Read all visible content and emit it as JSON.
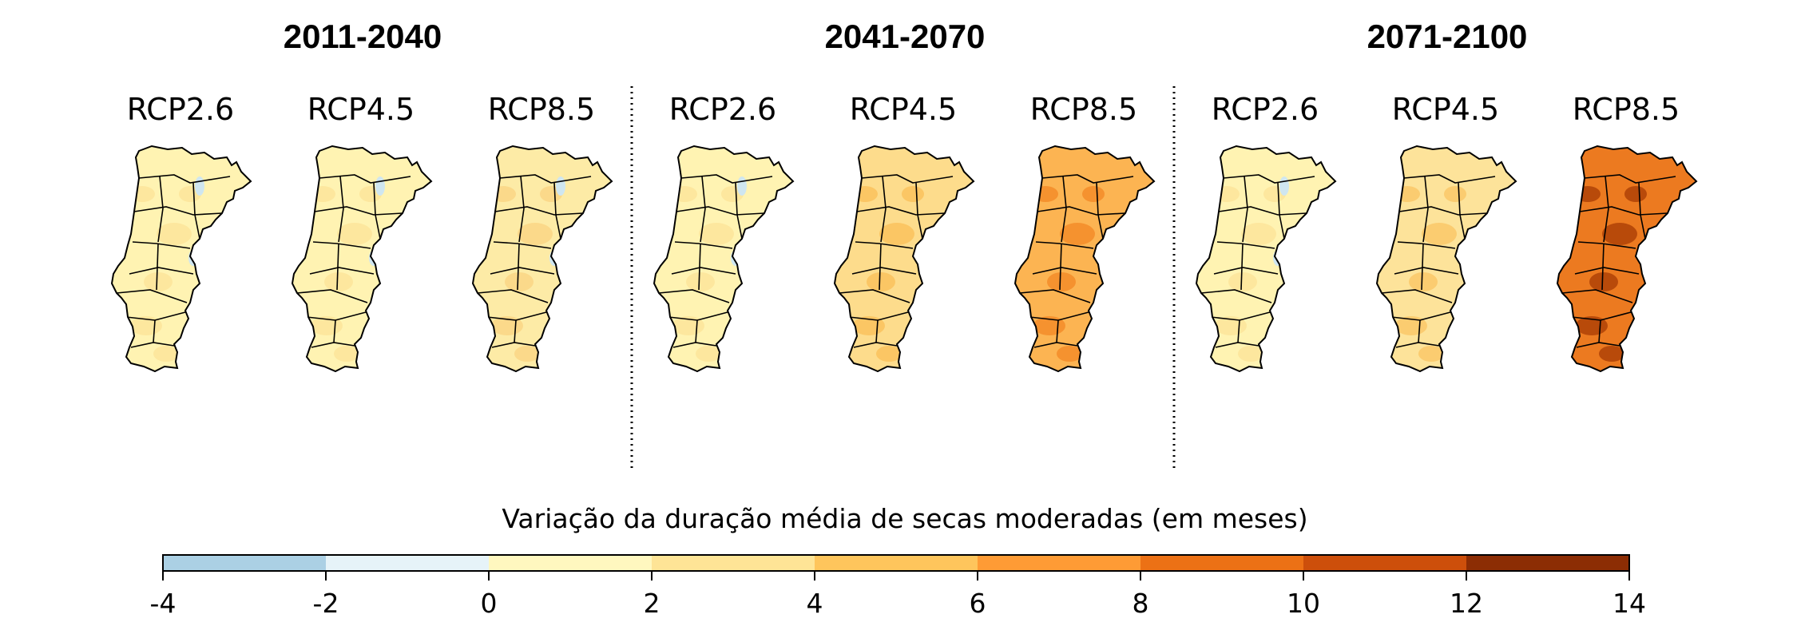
{
  "periods": [
    "2011-2040",
    "2041-2070",
    "2071-2100"
  ],
  "scenarios": [
    "RCP2.6",
    "RCP4.5",
    "RCP8.5"
  ],
  "colorbar": {
    "title": "Variação da duração média de secas moderadas (em meses)",
    "ticks": [
      "-4",
      "-2",
      "0",
      "2",
      "4",
      "6",
      "8",
      "10",
      "12",
      "14"
    ],
    "bins": [
      {
        "from": -4,
        "to": -2,
        "color": "#abd0e4"
      },
      {
        "from": -2,
        "to": 0,
        "color": "#e6f3f8"
      },
      {
        "from": 0,
        "to": 2,
        "color": "#fff7bf"
      },
      {
        "from": 2,
        "to": 4,
        "color": "#fee496"
      },
      {
        "from": 4,
        "to": 6,
        "color": "#fec55c"
      },
      {
        "from": 6,
        "to": 8,
        "color": "#fe9b35"
      },
      {
        "from": 8,
        "to": 10,
        "color": "#ec7115"
      },
      {
        "from": 10,
        "to": 12,
        "color": "#cd4f0b"
      },
      {
        "from": 12,
        "to": 14,
        "color": "#8c2d04"
      }
    ]
  },
  "maps": [
    {
      "period": "2011-2040",
      "scenario": "RCP2.6",
      "base_color": "#fff3b2",
      "patch_color": "#fde79e",
      "blue_patches": true
    },
    {
      "period": "2011-2040",
      "scenario": "RCP4.5",
      "base_color": "#fff3b2",
      "patch_color": "#fde79e",
      "blue_patches": true
    },
    {
      "period": "2011-2040",
      "scenario": "RCP8.5",
      "base_color": "#fdeba6",
      "patch_color": "#fbd98a",
      "blue_patches": true
    },
    {
      "period": "2041-2070",
      "scenario": "RCP2.6",
      "base_color": "#fff3b2",
      "patch_color": "#fde79e",
      "blue_patches": true
    },
    {
      "period": "2041-2070",
      "scenario": "RCP4.5",
      "base_color": "#fddc8c",
      "patch_color": "#fbc664",
      "blue_patches": false
    },
    {
      "period": "2041-2070",
      "scenario": "RCP8.5",
      "base_color": "#fcb452",
      "patch_color": "#f5922f",
      "blue_patches": false
    },
    {
      "period": "2071-2100",
      "scenario": "RCP2.6",
      "base_color": "#fff3b2",
      "patch_color": "#fde79e",
      "blue_patches": true
    },
    {
      "period": "2071-2100",
      "scenario": "RCP4.5",
      "base_color": "#fde39a",
      "patch_color": "#fbcc70",
      "blue_patches": false
    },
    {
      "period": "2071-2100",
      "scenario": "RCP8.5",
      "base_color": "#ec7a20",
      "patch_color": "#b84a0a",
      "blue_patches": false
    }
  ]
}
